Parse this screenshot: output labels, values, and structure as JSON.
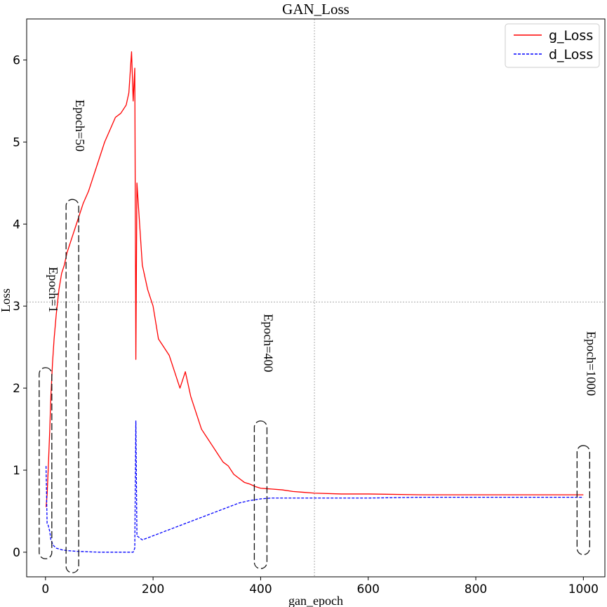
{
  "chart_data": {
    "type": "line",
    "title": "GAN_Loss",
    "xlabel": "gan_epoch",
    "ylabel": "Loss",
    "xlim": [
      -35,
      1040
    ],
    "ylim": [
      -0.3,
      6.5
    ],
    "xticks": [
      0,
      200,
      400,
      600,
      800,
      1000
    ],
    "yticks": [
      0,
      1,
      2,
      3,
      4,
      5,
      6
    ],
    "grid": false,
    "crosshair": {
      "x": 500,
      "y": 3.05
    },
    "legend": "top-right",
    "series": [
      {
        "name": "g_Loss",
        "color": "#ff0000",
        "style": "solid",
        "points": [
          [
            1,
            0.55
          ],
          [
            3,
            0.7
          ],
          [
            5,
            1.0
          ],
          [
            8,
            1.5
          ],
          [
            10,
            1.9
          ],
          [
            13,
            2.3
          ],
          [
            16,
            2.6
          ],
          [
            20,
            2.9
          ],
          [
            25,
            3.2
          ],
          [
            30,
            3.4
          ],
          [
            35,
            3.5
          ],
          [
            40,
            3.65
          ],
          [
            45,
            3.75
          ],
          [
            50,
            3.85
          ],
          [
            55,
            3.95
          ],
          [
            60,
            4.05
          ],
          [
            65,
            4.15
          ],
          [
            70,
            4.25
          ],
          [
            80,
            4.4
          ],
          [
            90,
            4.6
          ],
          [
            100,
            4.8
          ],
          [
            110,
            5.0
          ],
          [
            120,
            5.15
          ],
          [
            130,
            5.3
          ],
          [
            140,
            5.35
          ],
          [
            150,
            5.45
          ],
          [
            155,
            5.6
          ],
          [
            158,
            5.9
          ],
          [
            160,
            6.1
          ],
          [
            163,
            5.5
          ],
          [
            166,
            5.9
          ],
          [
            168,
            2.35
          ],
          [
            170,
            4.5
          ],
          [
            180,
            3.5
          ],
          [
            190,
            3.2
          ],
          [
            200,
            3.0
          ],
          [
            210,
            2.6
          ],
          [
            220,
            2.5
          ],
          [
            230,
            2.4
          ],
          [
            240,
            2.2
          ],
          [
            250,
            2.0
          ],
          [
            260,
            2.2
          ],
          [
            270,
            1.9
          ],
          [
            280,
            1.7
          ],
          [
            290,
            1.5
          ],
          [
            300,
            1.4
          ],
          [
            310,
            1.3
          ],
          [
            320,
            1.2
          ],
          [
            330,
            1.1
          ],
          [
            340,
            1.05
          ],
          [
            350,
            0.95
          ],
          [
            360,
            0.9
          ],
          [
            370,
            0.85
          ],
          [
            380,
            0.83
          ],
          [
            390,
            0.8
          ],
          [
            400,
            0.78
          ],
          [
            420,
            0.77
          ],
          [
            440,
            0.76
          ],
          [
            460,
            0.74
          ],
          [
            480,
            0.73
          ],
          [
            500,
            0.72
          ],
          [
            550,
            0.71
          ],
          [
            600,
            0.71
          ],
          [
            700,
            0.7
          ],
          [
            800,
            0.7
          ],
          [
            900,
            0.7
          ],
          [
            1000,
            0.7
          ]
        ]
      },
      {
        "name": "d_Loss",
        "color": "#0000ff",
        "style": "dashed",
        "points": [
          [
            1,
            1.05
          ],
          [
            3,
            0.35
          ],
          [
            5,
            0.33
          ],
          [
            8,
            0.25
          ],
          [
            10,
            0.15
          ],
          [
            15,
            0.08
          ],
          [
            20,
            0.05
          ],
          [
            30,
            0.03
          ],
          [
            40,
            0.02
          ],
          [
            60,
            0.01
          ],
          [
            100,
            0.0
          ],
          [
            150,
            0.0
          ],
          [
            163,
            0.0
          ],
          [
            166,
            0.05
          ],
          [
            168,
            1.6
          ],
          [
            170,
            0.2
          ],
          [
            180,
            0.15
          ],
          [
            200,
            0.2
          ],
          [
            220,
            0.25
          ],
          [
            240,
            0.3
          ],
          [
            260,
            0.35
          ],
          [
            280,
            0.4
          ],
          [
            300,
            0.45
          ],
          [
            320,
            0.5
          ],
          [
            340,
            0.55
          ],
          [
            360,
            0.6
          ],
          [
            380,
            0.63
          ],
          [
            400,
            0.65
          ],
          [
            420,
            0.66
          ],
          [
            450,
            0.66
          ],
          [
            500,
            0.66
          ],
          [
            600,
            0.66
          ],
          [
            700,
            0.67
          ],
          [
            800,
            0.67
          ],
          [
            900,
            0.67
          ],
          [
            1000,
            0.67
          ]
        ]
      }
    ],
    "annotations": [
      {
        "text": "Epoch=1",
        "x": 0,
        "y_low": -0.08,
        "y_high": 2.25,
        "label_y": 3.2
      },
      {
        "text": "Epoch=50",
        "x": 50,
        "y_low": -0.25,
        "y_high": 4.3,
        "label_y": 5.2
      },
      {
        "text": "Epoch=400",
        "x": 400,
        "y_low": -0.2,
        "y_high": 1.6,
        "label_y": 2.55
      },
      {
        "text": "Epoch=1000",
        "x": 1000,
        "y_low": -0.03,
        "y_high": 1.3,
        "label_y": 2.3
      }
    ]
  }
}
